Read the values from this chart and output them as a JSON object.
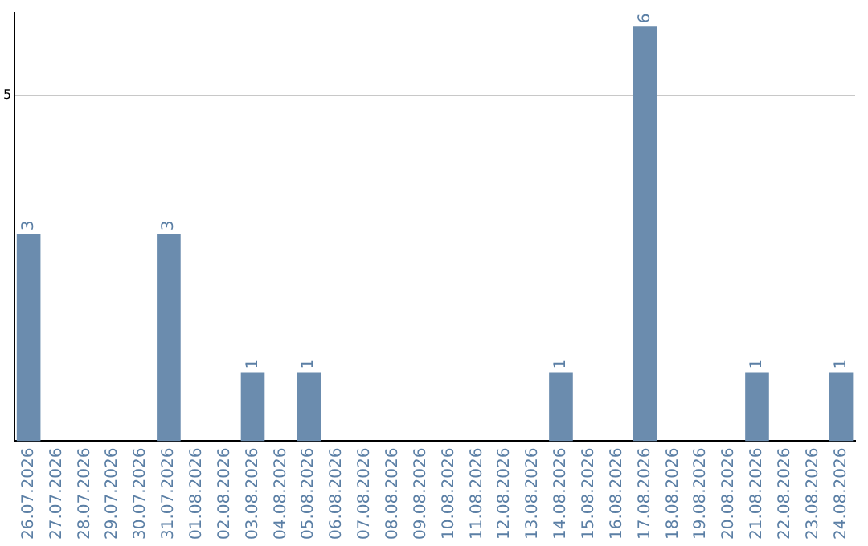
{
  "chart_data": {
    "type": "bar",
    "categories": [
      "26.07.2026",
      "27.07.2026",
      "28.07.2026",
      "29.07.2026",
      "30.07.2026",
      "31.07.2026",
      "01.08.2026",
      "02.08.2026",
      "03.08.2026",
      "04.08.2026",
      "05.08.2026",
      "06.08.2026",
      "07.08.2026",
      "08.08.2026",
      "09.08.2026",
      "10.08.2026",
      "11.08.2026",
      "12.08.2026",
      "13.08.2026",
      "14.08.2026",
      "15.08.2026",
      "16.08.2026",
      "17.08.2026",
      "18.08.2026",
      "19.08.2026",
      "20.08.2026",
      "21.08.2026",
      "22.08.2026",
      "23.08.2026",
      "24.08.2026"
    ],
    "values": [
      3,
      0,
      0,
      0,
      0,
      3,
      0,
      0,
      1,
      0,
      1,
      0,
      0,
      0,
      0,
      0,
      0,
      0,
      0,
      1,
      0,
      0,
      6,
      0,
      0,
      0,
      1,
      0,
      0,
      1
    ],
    "color": "#6b8cae",
    "value_labels": [
      "3",
      null,
      null,
      null,
      null,
      "3",
      null,
      null,
      "1",
      null,
      "1",
      null,
      null,
      null,
      null,
      null,
      null,
      null,
      null,
      "1",
      null,
      null,
      "6",
      null,
      null,
      null,
      "1",
      null,
      null,
      "1"
    ],
    "ylim": [
      0,
      6.2
    ],
    "yticks": [
      5
    ],
    "grid": "y"
  }
}
